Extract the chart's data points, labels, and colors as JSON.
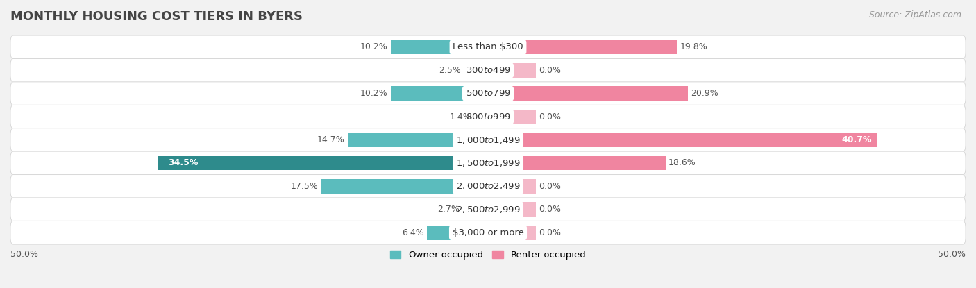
{
  "title": "MONTHLY HOUSING COST TIERS IN BYERS",
  "source": "Source: ZipAtlas.com",
  "categories": [
    "Less than $300",
    "$300 to $499",
    "$500 to $799",
    "$800 to $999",
    "$1,000 to $1,499",
    "$1,500 to $1,999",
    "$2,000 to $2,499",
    "$2,500 to $2,999",
    "$3,000 or more"
  ],
  "owner_values": [
    10.2,
    2.5,
    10.2,
    1.4,
    14.7,
    34.5,
    17.5,
    2.7,
    6.4
  ],
  "renter_values": [
    19.8,
    0.0,
    20.9,
    0.0,
    40.7,
    18.6,
    0.0,
    0.0,
    0.0
  ],
  "owner_color": "#5bbcbd",
  "owner_color_dark": "#2e8b8c",
  "renter_color": "#f085a0",
  "renter_color_light": "#f4b8c8",
  "background_color": "#f2f2f2",
  "row_bg_color": "#ffffff",
  "row_border_color": "#d8d8d8",
  "xlim": [
    -50,
    50
  ],
  "bar_height": 0.62,
  "legend_labels": [
    "Owner-occupied",
    "Renter-occupied"
  ],
  "title_fontsize": 13,
  "source_fontsize": 9,
  "label_fontsize": 9,
  "category_fontsize": 9.5,
  "zero_stub": 5.0
}
